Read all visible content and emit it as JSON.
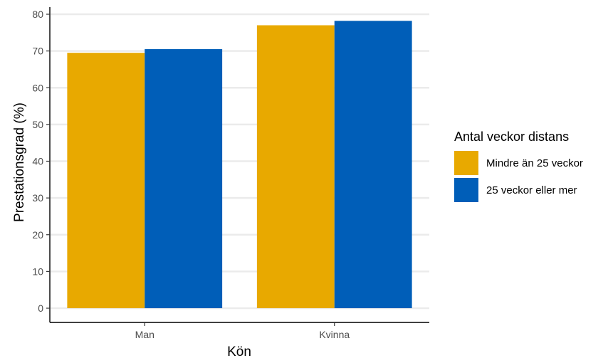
{
  "chart_data": {
    "type": "bar",
    "xlabel": "Kön",
    "ylabel": "Prestationsgrad (%)",
    "categories": [
      "Man",
      "Kvinna"
    ],
    "ylim": [
      0,
      80
    ],
    "yticks": [
      0,
      10,
      20,
      30,
      40,
      50,
      60,
      70,
      80
    ],
    "grid": true,
    "legend": {
      "title": "Antal veckor distans",
      "position": "right"
    },
    "series": [
      {
        "name": "Mindre än 25 veckor",
        "color": "#E8A900",
        "values": [
          69.5,
          77.0
        ]
      },
      {
        "name": "25 veckor eller mer",
        "color": "#005EB8",
        "values": [
          70.5,
          78.2
        ]
      }
    ]
  }
}
